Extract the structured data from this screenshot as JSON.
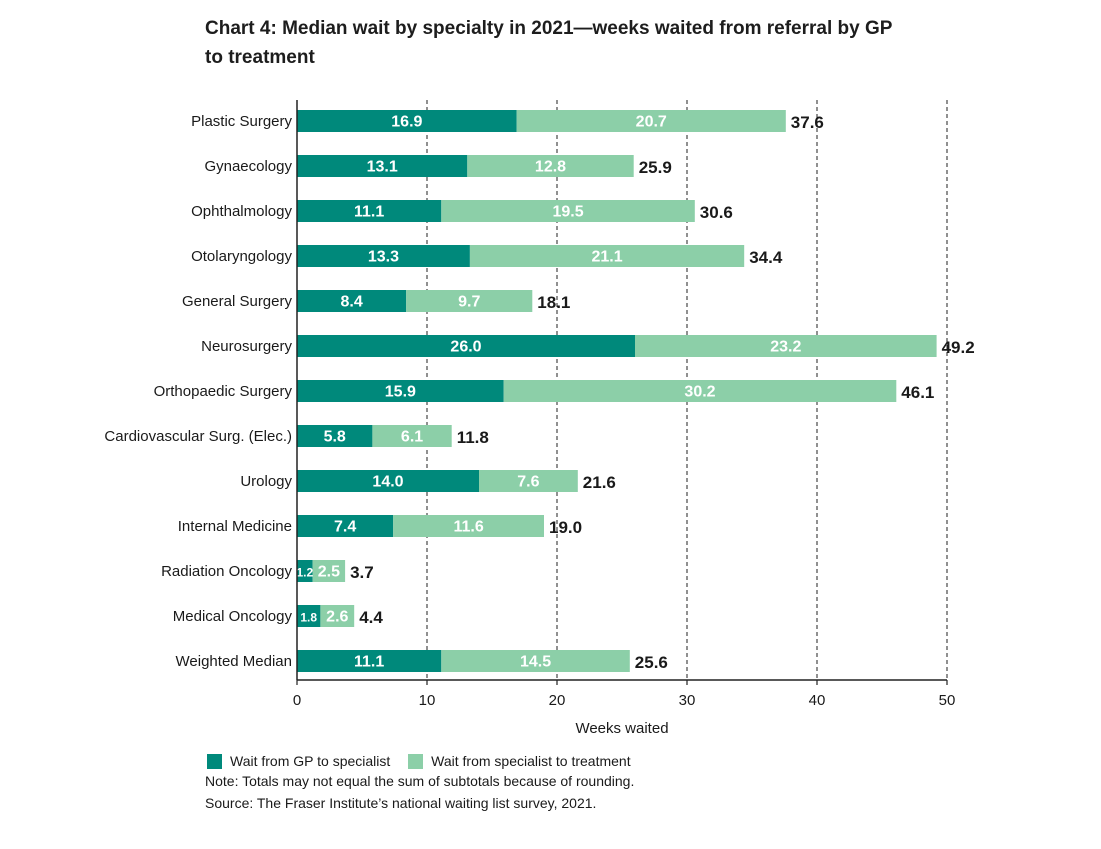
{
  "title": "Chart 4: Median wait by specialty in 2021—weeks waited from referral by GP to treatment",
  "colors": {
    "gp": "#00897b",
    "specialist": "#8ccfa8",
    "grid": "#222222",
    "axis": "#222222"
  },
  "chart_data": {
    "type": "bar",
    "orientation": "horizontal",
    "stacked": true,
    "title": "Chart 4: Median wait by specialty in 2021—weeks waited from referral by GP to treatment",
    "xlabel": "Weeks waited",
    "ylabel": "",
    "xlim": [
      0,
      50
    ],
    "xticks": [
      0,
      10,
      20,
      30,
      40,
      50
    ],
    "grid": "vertical dashed",
    "categories": [
      "Plastic Surgery",
      "Gynaecology",
      "Ophthalmology",
      "Otolaryngology",
      "General Surgery",
      "Neurosurgery",
      "Orthopaedic Surgery",
      "Cardiovascular Surg. (Elec.)",
      "Urology",
      "Internal Medicine",
      "Radiation Oncology",
      "Medical Oncology",
      "Weighted Median"
    ],
    "series": [
      {
        "name": "Wait from GP to specialist",
        "values": [
          16.9,
          13.1,
          11.1,
          13.3,
          8.4,
          26.0,
          15.9,
          5.8,
          14.0,
          7.4,
          1.2,
          1.8,
          11.1
        ],
        "labels": [
          "16.9",
          "13.1",
          "11.1",
          "13.3",
          "8.4",
          "26.0",
          "15.9",
          "5.8",
          "14.0",
          "7.4",
          "1.2",
          "1.8",
          "11.1"
        ]
      },
      {
        "name": "Wait from specialist to treatment",
        "values": [
          20.7,
          12.8,
          19.5,
          21.1,
          9.7,
          23.2,
          30.2,
          6.1,
          7.6,
          11.6,
          2.5,
          2.6,
          14.5
        ],
        "labels": [
          "20.7",
          "12.8",
          "19.5",
          "21.1",
          "9.7",
          "23.2",
          "30.2",
          "6.1",
          "7.6",
          "11.6",
          "2.5",
          "2.6",
          "14.5"
        ]
      }
    ],
    "totals": [
      37.6,
      25.9,
      30.6,
      34.4,
      18.1,
      49.2,
      46.1,
      11.8,
      21.6,
      19.0,
      3.7,
      4.4,
      25.6
    ],
    "total_labels": [
      "37.6",
      "25.9",
      "30.6",
      "34.4",
      "18.1",
      "49.2",
      "46.1",
      "11.8",
      "21.6",
      "19.0",
      "3.7",
      "4.4",
      "25.6"
    ],
    "legend": [
      "Wait from GP to specialist",
      "Wait from specialist to treatment"
    ],
    "legend_position": "bottom-left"
  },
  "footer": {
    "note": "Note: Totals may not equal the sum of subtotals because of rounding.",
    "source": "Source: The Fraser Institute’s national waiting list survey, 2021."
  }
}
